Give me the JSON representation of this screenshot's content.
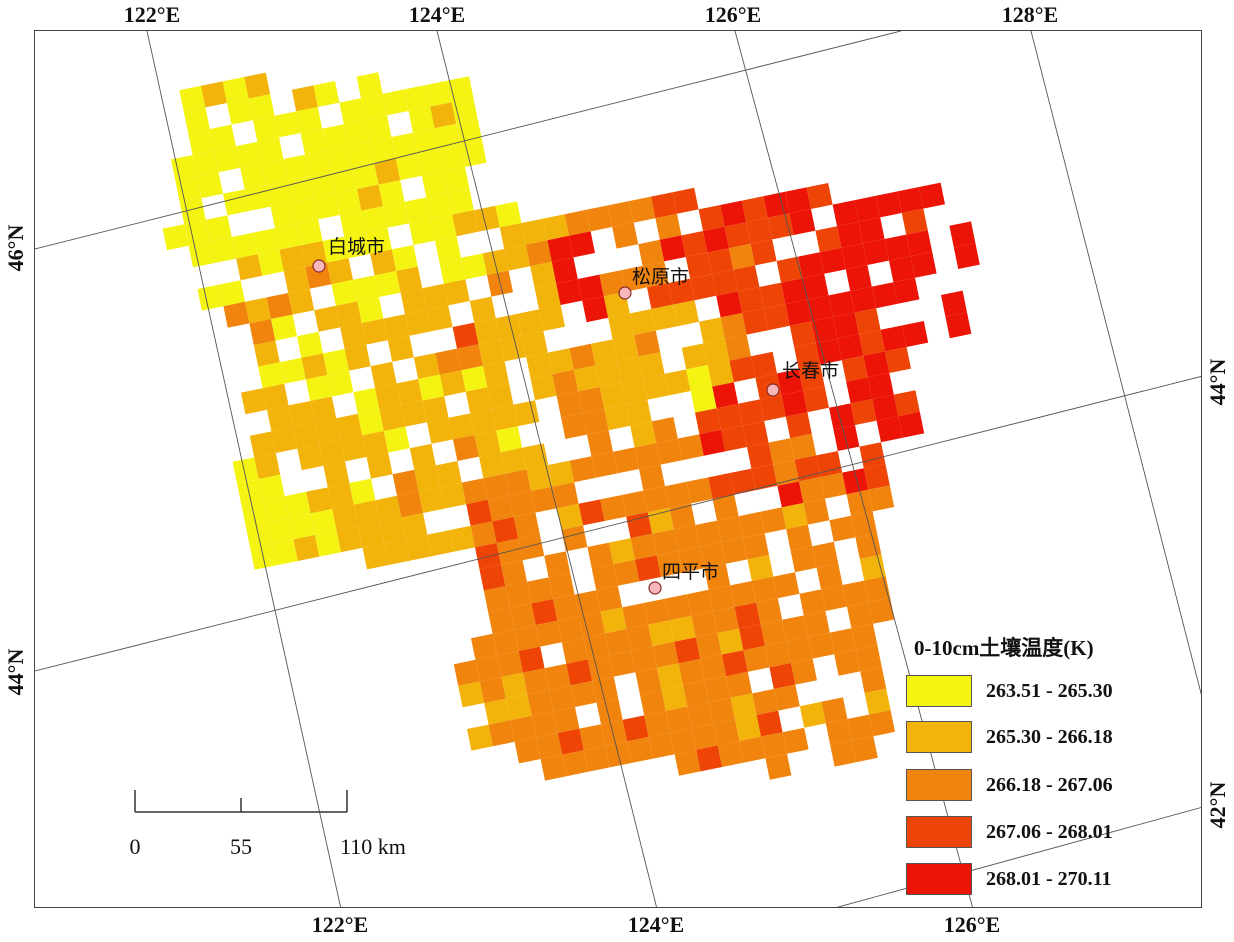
{
  "legend": {
    "title": "0-10cm土壤温度(K)",
    "classes": [
      {
        "label": "263.51 - 265.30",
        "color": "#f5f312"
      },
      {
        "label": "265.30 - 266.18",
        "color": "#f2b40a"
      },
      {
        "label": "266.18 - 267.06",
        "color": "#f0840c"
      },
      {
        "label": "267.06 - 268.01",
        "color": "#ee4406"
      },
      {
        "label": "268.01 - 270.11",
        "color": "#ec1406"
      }
    ]
  },
  "graticule": {
    "top_ticks": [
      "122°E",
      "124°E",
      "126°E",
      "128°E"
    ],
    "bottom_ticks": [
      "122°E",
      "124°E",
      "126°E"
    ],
    "left_ticks": [
      "46°N",
      "44°N"
    ],
    "right_ticks": [
      "44°N",
      "42°N"
    ]
  },
  "cities": [
    {
      "name": "白城市"
    },
    {
      "name": "松原市"
    },
    {
      "name": "长春市"
    },
    {
      "name": "四平市"
    }
  ],
  "scalebar": {
    "labels": [
      "0",
      "55",
      "110 km"
    ]
  },
  "colors": {
    "frame": "#444444",
    "graticule": "#555555",
    "city_marker_fill": "#f6b8b8",
    "city_marker_stroke": "#8a2a2a"
  }
}
